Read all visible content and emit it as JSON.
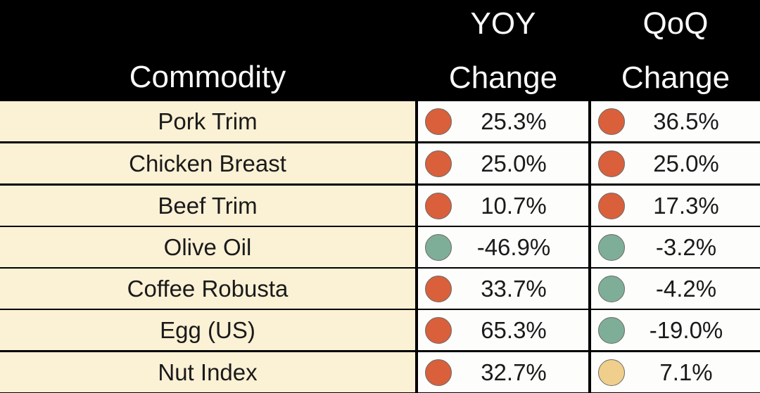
{
  "colors": {
    "header_bg": "#000000",
    "header_text": "#fafafa",
    "commodity_bg": "#fbf1d5",
    "value_bg": "#fdfdfb",
    "red": "#d9603b",
    "green": "#7fae98",
    "yellow": "#f0cf8c"
  },
  "header": {
    "commodity": "Commodity",
    "yoy_line1": "YOY",
    "yoy_line2": "Change",
    "qoq_line1": "QoQ",
    "qoq_line2": "Change"
  },
  "rows": [
    {
      "commodity": "Pork Trim",
      "yoy": "25.3%",
      "yoy_status": "red",
      "qoq": "36.5%",
      "qoq_status": "red"
    },
    {
      "commodity": "Chicken Breast",
      "yoy": "25.0%",
      "yoy_status": "red",
      "qoq": "25.0%",
      "qoq_status": "red"
    },
    {
      "commodity": "Beef Trim",
      "yoy": "10.7%",
      "yoy_status": "red",
      "qoq": "17.3%",
      "qoq_status": "red"
    },
    {
      "commodity": "Olive Oil",
      "yoy": "-46.9%",
      "yoy_status": "green",
      "qoq": "-3.2%",
      "qoq_status": "green"
    },
    {
      "commodity": "Coffee Robusta",
      "yoy": "33.7%",
      "yoy_status": "red",
      "qoq": "-4.2%",
      "qoq_status": "green"
    },
    {
      "commodity": "Egg (US)",
      "yoy": "65.3%",
      "yoy_status": "red",
      "qoq": "-19.0%",
      "qoq_status": "green"
    },
    {
      "commodity": "Nut Index",
      "yoy": "32.7%",
      "yoy_status": "red",
      "qoq": "7.1%",
      "qoq_status": "yellow"
    }
  ]
}
